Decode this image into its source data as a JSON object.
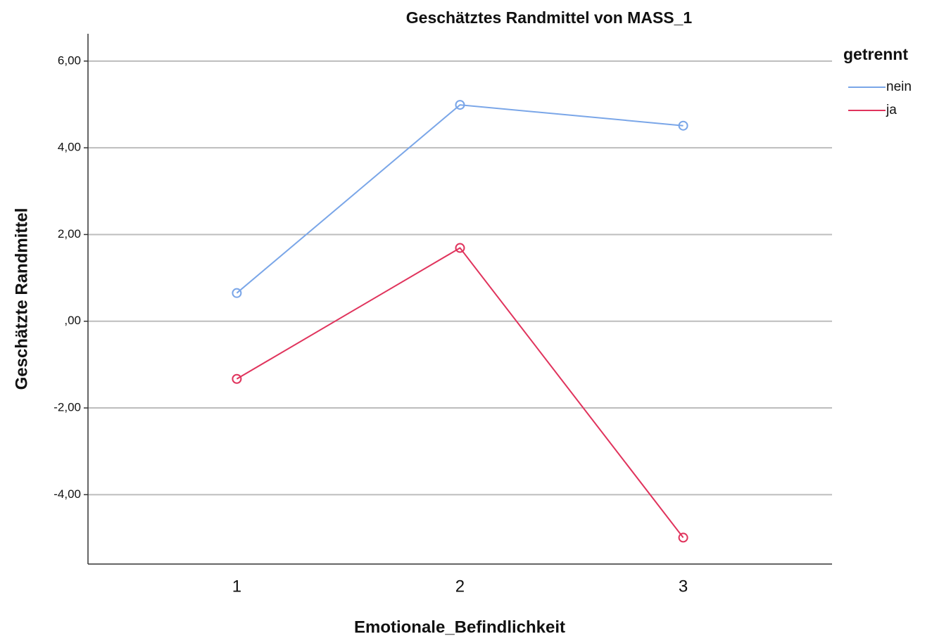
{
  "chart_data": {
    "type": "line",
    "title": "Geschätztes Randmittel von MASS_1",
    "x_label": "Emotionale_Befindlichkeit",
    "y_label": "Geschätzte Randmittel",
    "legend_title": "getrennt",
    "legend": "right",
    "grid": true,
    "categories": [
      "1",
      "2",
      "3"
    ],
    "series": [
      {
        "name": "nein",
        "color": "#7aa6e8",
        "values": [
          0.65,
          4.99,
          4.51
        ]
      },
      {
        "name": "ja",
        "color": "#e0335c",
        "values": [
          -1.33,
          1.69,
          -4.99
        ]
      }
    ],
    "ylim": [
      -5.6,
      6.63
    ],
    "yticks": [
      {
        "value": -4,
        "label": "-4,00"
      },
      {
        "value": -2,
        "label": "-2,00"
      },
      {
        "value": 0,
        "label": ",00"
      },
      {
        "value": 2,
        "label": "2,00"
      },
      {
        "value": 4,
        "label": "4,00"
      },
      {
        "value": 6,
        "label": "6,00"
      }
    ]
  }
}
